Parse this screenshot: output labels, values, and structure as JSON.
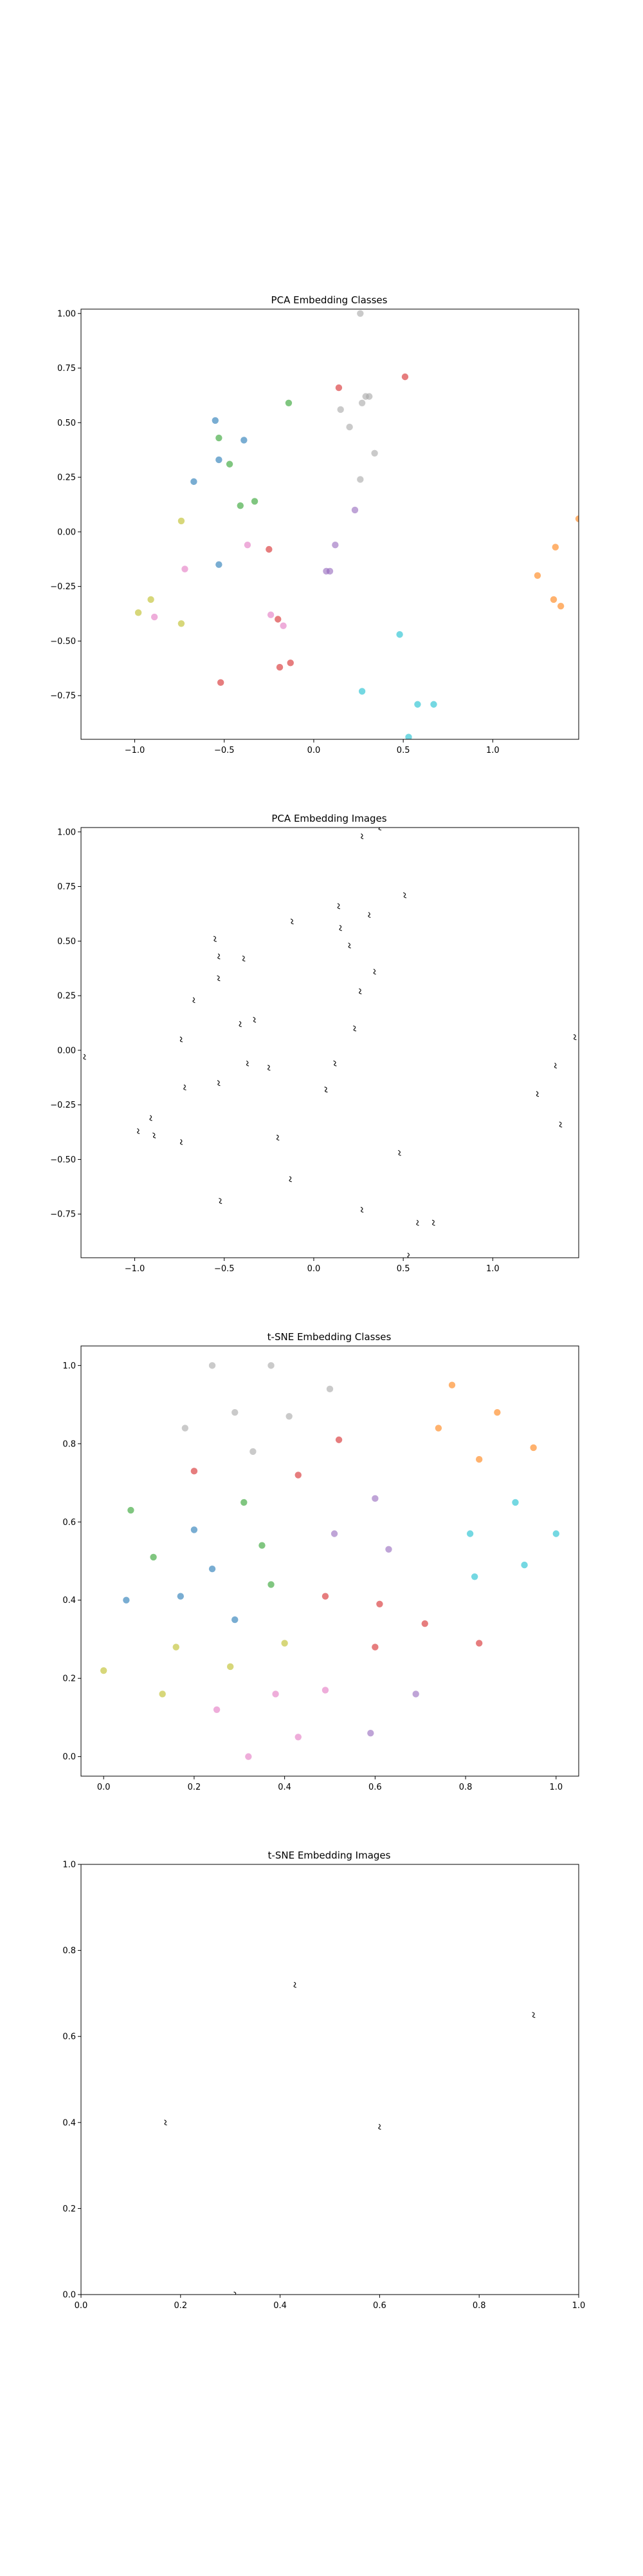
{
  "chart_data": [
    {
      "type": "scatter",
      "title": "PCA Embedding Classes",
      "xlim": [
        -1.3,
        1.48
      ],
      "ylim": [
        -0.95,
        1.02
      ],
      "xticks": [
        -1.0,
        -0.5,
        0.0,
        0.5,
        1.0
      ],
      "xtick_labels": [
        "−1.0",
        "−0.5",
        "0.0",
        "0.5",
        "1.0"
      ],
      "yticks": [
        1.0,
        0.75,
        0.5,
        0.25,
        0.0,
        -0.25,
        -0.5,
        -0.75
      ],
      "ytick_labels": [
        "1.00",
        "0.75",
        "0.50",
        "0.25",
        "0.00",
        "−0.25",
        "−0.50",
        "−0.75"
      ],
      "grid": false,
      "marker": "circle",
      "points": [
        {
          "x": 0.26,
          "y": 1.0,
          "color": "#a6a6a6"
        },
        {
          "x": 0.51,
          "y": 0.71,
          "color": "#d62728"
        },
        {
          "x": 0.14,
          "y": 0.66,
          "color": "#d62728"
        },
        {
          "x": 0.29,
          "y": 0.62,
          "color": "#a6a6a6"
        },
        {
          "x": 0.31,
          "y": 0.62,
          "color": "#a6a6a6"
        },
        {
          "x": 0.27,
          "y": 0.59,
          "color": "#a6a6a6"
        },
        {
          "x": 0.15,
          "y": 0.56,
          "color": "#a6a6a6"
        },
        {
          "x": 0.2,
          "y": 0.48,
          "color": "#a6a6a6"
        },
        {
          "x": 0.34,
          "y": 0.36,
          "color": "#a6a6a6"
        },
        {
          "x": 0.26,
          "y": 0.24,
          "color": "#a6a6a6"
        },
        {
          "x": 0.23,
          "y": 0.1,
          "color": "#9467bd"
        },
        {
          "x": 0.12,
          "y": -0.06,
          "color": "#9467bd"
        },
        {
          "x": 0.07,
          "y": -0.18,
          "color": "#9467bd"
        },
        {
          "x": 0.09,
          "y": -0.18,
          "color": "#9467bd"
        },
        {
          "x": -0.14,
          "y": 0.59,
          "color": "#2ca02c"
        },
        {
          "x": -0.55,
          "y": 0.51,
          "color": "#1f77b4"
        },
        {
          "x": -0.53,
          "y": 0.43,
          "color": "#2ca02c"
        },
        {
          "x": -0.39,
          "y": 0.42,
          "color": "#1f77b4"
        },
        {
          "x": -0.53,
          "y": 0.33,
          "color": "#1f77b4"
        },
        {
          "x": -0.47,
          "y": 0.31,
          "color": "#2ca02c"
        },
        {
          "x": -0.67,
          "y": 0.23,
          "color": "#1f77b4"
        },
        {
          "x": -0.33,
          "y": 0.14,
          "color": "#2ca02c"
        },
        {
          "x": -0.41,
          "y": 0.12,
          "color": "#2ca02c"
        },
        {
          "x": -0.53,
          "y": -0.15,
          "color": "#1f77b4"
        },
        {
          "x": -0.37,
          "y": -0.06,
          "color": "#e377c2"
        },
        {
          "x": -0.25,
          "y": -0.08,
          "color": "#d62728"
        },
        {
          "x": -0.74,
          "y": 0.05,
          "color": "#bcbd22"
        },
        {
          "x": -0.72,
          "y": -0.17,
          "color": "#e377c2"
        },
        {
          "x": -0.91,
          "y": -0.31,
          "color": "#bcbd22"
        },
        {
          "x": -0.98,
          "y": -0.37,
          "color": "#bcbd22"
        },
        {
          "x": -0.89,
          "y": -0.39,
          "color": "#e377c2"
        },
        {
          "x": -0.74,
          "y": -0.42,
          "color": "#bcbd22"
        },
        {
          "x": -0.24,
          "y": -0.38,
          "color": "#e377c2"
        },
        {
          "x": -0.2,
          "y": -0.4,
          "color": "#d62728"
        },
        {
          "x": -0.17,
          "y": -0.43,
          "color": "#e377c2"
        },
        {
          "x": -0.13,
          "y": -0.6,
          "color": "#d62728"
        },
        {
          "x": -0.19,
          "y": -0.62,
          "color": "#d62728"
        },
        {
          "x": -0.52,
          "y": -0.69,
          "color": "#d62728"
        },
        {
          "x": 0.48,
          "y": -0.47,
          "color": "#17becf"
        },
        {
          "x": 0.27,
          "y": -0.73,
          "color": "#17becf"
        },
        {
          "x": 0.58,
          "y": -0.79,
          "color": "#17becf"
        },
        {
          "x": 0.67,
          "y": -0.79,
          "color": "#17becf"
        },
        {
          "x": 0.53,
          "y": -0.94,
          "color": "#17becf"
        },
        {
          "x": 1.48,
          "y": 0.06,
          "color": "#ff7f0e"
        },
        {
          "x": 1.35,
          "y": -0.07,
          "color": "#ff7f0e"
        },
        {
          "x": 1.25,
          "y": -0.2,
          "color": "#ff7f0e"
        },
        {
          "x": 1.34,
          "y": -0.31,
          "color": "#ff7f0e"
        },
        {
          "x": 1.38,
          "y": -0.34,
          "color": "#ff7f0e"
        }
      ]
    },
    {
      "type": "scatter",
      "title": "PCA Embedding Images",
      "xlim": [
        -1.3,
        1.48
      ],
      "ylim": [
        -0.95,
        1.02
      ],
      "xticks": [
        -1.0,
        -0.5,
        0.0,
        0.5,
        1.0
      ],
      "xtick_labels": [
        "−1.0",
        "−0.5",
        "0.0",
        "0.5",
        "1.0"
      ],
      "yticks": [
        1.0,
        0.75,
        0.5,
        0.25,
        0.0,
        -0.25,
        -0.5,
        -0.75
      ],
      "ytick_labels": [
        "1.00",
        "0.75",
        "0.50",
        "0.25",
        "0.00",
        "−0.25",
        "−0.50",
        "−0.75"
      ],
      "grid": false,
      "marker": "image",
      "points": [
        {
          "x": 0.37,
          "y": 1.02
        },
        {
          "x": 0.27,
          "y": 0.98
        },
        {
          "x": 0.51,
          "y": 0.71
        },
        {
          "x": 0.14,
          "y": 0.66
        },
        {
          "x": 0.31,
          "y": 0.62
        },
        {
          "x": -0.12,
          "y": 0.59
        },
        {
          "x": 0.15,
          "y": 0.56
        },
        {
          "x": -0.55,
          "y": 0.51
        },
        {
          "x": 0.2,
          "y": 0.48
        },
        {
          "x": -0.53,
          "y": 0.43
        },
        {
          "x": -0.39,
          "y": 0.42
        },
        {
          "x": 0.34,
          "y": 0.36
        },
        {
          "x": -0.53,
          "y": 0.33
        },
        {
          "x": 0.26,
          "y": 0.27
        },
        {
          "x": -0.67,
          "y": 0.23
        },
        {
          "x": -0.33,
          "y": 0.14
        },
        {
          "x": -0.41,
          "y": 0.12
        },
        {
          "x": 0.23,
          "y": 0.1
        },
        {
          "x": -0.74,
          "y": 0.05
        },
        {
          "x": -1.28,
          "y": -0.03
        },
        {
          "x": 1.46,
          "y": 0.06
        },
        {
          "x": -0.37,
          "y": -0.06
        },
        {
          "x": 0.12,
          "y": -0.06
        },
        {
          "x": -0.25,
          "y": -0.08
        },
        {
          "x": 1.35,
          "y": -0.07
        },
        {
          "x": -0.53,
          "y": -0.15
        },
        {
          "x": -0.72,
          "y": -0.17
        },
        {
          "x": 0.07,
          "y": -0.18
        },
        {
          "x": 1.25,
          "y": -0.2
        },
        {
          "x": -0.91,
          "y": -0.31
        },
        {
          "x": 1.38,
          "y": -0.34
        },
        {
          "x": -0.98,
          "y": -0.37
        },
        {
          "x": -0.89,
          "y": -0.39
        },
        {
          "x": -0.2,
          "y": -0.4
        },
        {
          "x": -0.74,
          "y": -0.42
        },
        {
          "x": 0.48,
          "y": -0.47
        },
        {
          "x": -0.13,
          "y": -0.59
        },
        {
          "x": -0.52,
          "y": -0.69
        },
        {
          "x": 0.27,
          "y": -0.73
        },
        {
          "x": 0.58,
          "y": -0.79
        },
        {
          "x": 0.67,
          "y": -0.79
        },
        {
          "x": 0.53,
          "y": -0.94
        }
      ]
    },
    {
      "type": "scatter",
      "title": "t-SNE Embedding Classes",
      "xlim": [
        -0.05,
        1.05
      ],
      "ylim": [
        -0.05,
        1.05
      ],
      "xticks": [
        0.0,
        0.2,
        0.4,
        0.6,
        0.8,
        1.0
      ],
      "xtick_labels": [
        "0.0",
        "0.2",
        "0.4",
        "0.6",
        "0.8",
        "1.0"
      ],
      "yticks": [
        0.0,
        0.2,
        0.4,
        0.6,
        0.8,
        1.0
      ],
      "ytick_labels": [
        "0.0",
        "0.2",
        "0.4",
        "0.6",
        "0.8",
        "1.0"
      ],
      "grid": false,
      "marker": "circle",
      "points": [
        {
          "x": 0.24,
          "y": 1.0,
          "color": "#a6a6a6"
        },
        {
          "x": 0.37,
          "y": 1.0,
          "color": "#a6a6a6"
        },
        {
          "x": 0.5,
          "y": 0.94,
          "color": "#a6a6a6"
        },
        {
          "x": 0.29,
          "y": 0.88,
          "color": "#a6a6a6"
        },
        {
          "x": 0.41,
          "y": 0.87,
          "color": "#a6a6a6"
        },
        {
          "x": 0.18,
          "y": 0.84,
          "color": "#a6a6a6"
        },
        {
          "x": 0.33,
          "y": 0.78,
          "color": "#a6a6a6"
        },
        {
          "x": 0.77,
          "y": 0.95,
          "color": "#ff7f0e"
        },
        {
          "x": 0.87,
          "y": 0.88,
          "color": "#ff7f0e"
        },
        {
          "x": 0.74,
          "y": 0.84,
          "color": "#ff7f0e"
        },
        {
          "x": 0.95,
          "y": 0.79,
          "color": "#ff7f0e"
        },
        {
          "x": 0.83,
          "y": 0.76,
          "color": "#ff7f0e"
        },
        {
          "x": 0.52,
          "y": 0.81,
          "color": "#d62728"
        },
        {
          "x": 0.2,
          "y": 0.73,
          "color": "#d62728"
        },
        {
          "x": 0.43,
          "y": 0.72,
          "color": "#d62728"
        },
        {
          "x": 0.49,
          "y": 0.41,
          "color": "#d62728"
        },
        {
          "x": 0.61,
          "y": 0.39,
          "color": "#d62728"
        },
        {
          "x": 0.71,
          "y": 0.34,
          "color": "#d62728"
        },
        {
          "x": 0.83,
          "y": 0.29,
          "color": "#d62728"
        },
        {
          "x": 0.6,
          "y": 0.28,
          "color": "#d62728"
        },
        {
          "x": 0.06,
          "y": 0.63,
          "color": "#2ca02c"
        },
        {
          "x": 0.31,
          "y": 0.65,
          "color": "#2ca02c"
        },
        {
          "x": 0.11,
          "y": 0.51,
          "color": "#2ca02c"
        },
        {
          "x": 0.35,
          "y": 0.54,
          "color": "#2ca02c"
        },
        {
          "x": 0.37,
          "y": 0.44,
          "color": "#2ca02c"
        },
        {
          "x": 0.2,
          "y": 0.58,
          "color": "#1f77b4"
        },
        {
          "x": 0.24,
          "y": 0.48,
          "color": "#1f77b4"
        },
        {
          "x": 0.17,
          "y": 0.41,
          "color": "#1f77b4"
        },
        {
          "x": 0.05,
          "y": 0.4,
          "color": "#1f77b4"
        },
        {
          "x": 0.29,
          "y": 0.35,
          "color": "#1f77b4"
        },
        {
          "x": 0.6,
          "y": 0.66,
          "color": "#9467bd"
        },
        {
          "x": 0.51,
          "y": 0.57,
          "color": "#9467bd"
        },
        {
          "x": 0.63,
          "y": 0.53,
          "color": "#9467bd"
        },
        {
          "x": 0.69,
          "y": 0.16,
          "color": "#9467bd"
        },
        {
          "x": 0.59,
          "y": 0.06,
          "color": "#9467bd"
        },
        {
          "x": 0.91,
          "y": 0.65,
          "color": "#17becf"
        },
        {
          "x": 0.81,
          "y": 0.57,
          "color": "#17becf"
        },
        {
          "x": 1.0,
          "y": 0.57,
          "color": "#17becf"
        },
        {
          "x": 0.93,
          "y": 0.49,
          "color": "#17becf"
        },
        {
          "x": 0.82,
          "y": 0.46,
          "color": "#17becf"
        },
        {
          "x": 0.0,
          "y": 0.22,
          "color": "#bcbd22"
        },
        {
          "x": 0.16,
          "y": 0.28,
          "color": "#bcbd22"
        },
        {
          "x": 0.4,
          "y": 0.29,
          "color": "#bcbd22"
        },
        {
          "x": 0.28,
          "y": 0.23,
          "color": "#bcbd22"
        },
        {
          "x": 0.13,
          "y": 0.16,
          "color": "#bcbd22"
        },
        {
          "x": 0.38,
          "y": 0.16,
          "color": "#e377c2"
        },
        {
          "x": 0.49,
          "y": 0.17,
          "color": "#e377c2"
        },
        {
          "x": 0.25,
          "y": 0.12,
          "color": "#e377c2"
        },
        {
          "x": 0.43,
          "y": 0.05,
          "color": "#e377c2"
        },
        {
          "x": 0.32,
          "y": 0.0,
          "color": "#e377c2"
        }
      ]
    },
    {
      "type": "scatter",
      "title": "t-SNE Embedding Images",
      "xlim": [
        0.0,
        1.0
      ],
      "ylim": [
        0.0,
        1.0
      ],
      "xticks": [
        0.0,
        0.2,
        0.4,
        0.6,
        0.8,
        1.0
      ],
      "xtick_labels": [
        "0.0",
        "0.2",
        "0.4",
        "0.6",
        "0.8",
        "1.0"
      ],
      "yticks": [
        0.0,
        0.2,
        0.4,
        0.6,
        0.8,
        1.0
      ],
      "ytick_labels": [
        "0.0",
        "0.2",
        "0.4",
        "0.6",
        "0.8",
        "1.0"
      ],
      "grid": false,
      "marker": "image",
      "points": [
        {
          "x": 0.43,
          "y": 0.72
        },
        {
          "x": 0.91,
          "y": 0.65
        },
        {
          "x": 0.17,
          "y": 0.4
        },
        {
          "x": 0.6,
          "y": 0.39
        },
        {
          "x": 0.31,
          "y": 0.0
        }
      ]
    }
  ]
}
